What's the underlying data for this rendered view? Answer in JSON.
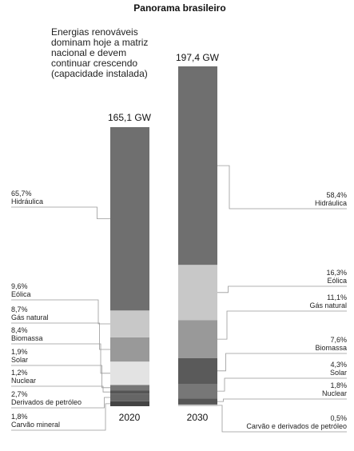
{
  "chart_data": {
    "type": "bar",
    "stacked": true,
    "title": "Panorama brasileiro",
    "subtitle_lines": [
      "Energias renováveis",
      "dominam hoje a matriz",
      "nacional e devem",
      "continuar crescendo",
      "(capacidade instalada)"
    ],
    "categories": [
      "2020",
      "2030"
    ],
    "totals": [
      "165,1 GW",
      "197,4 GW"
    ],
    "total_values": [
      165.1,
      197.4
    ],
    "bars": [
      {
        "year": "2020",
        "segments": [
          {
            "name": "Carvão mineral",
            "pct": "1,8%",
            "value": 1.8,
            "color": "#444444"
          },
          {
            "name": "Derivados de petróleo",
            "pct": "2,7%",
            "value": 2.7,
            "color": "#666666"
          },
          {
            "name": "Nuclear",
            "pct": "1,2%",
            "value": 1.2,
            "color": "#555555"
          },
          {
            "name": "Solar",
            "pct": "1,9%",
            "value": 1.9,
            "color": "#777777"
          },
          {
            "name": "Biomassa",
            "pct": "8,4%",
            "value": 8.4,
            "color": "#e3e3e3"
          },
          {
            "name": "Gás natural",
            "pct": "8,7%",
            "value": 8.7,
            "color": "#999999"
          },
          {
            "name": "Eólica",
            "pct": "9,6%",
            "value": 9.6,
            "color": "#c8c8c8"
          },
          {
            "name": "Hidráulica",
            "pct": "65,7%",
            "value": 65.7,
            "color": "#6f6f6f"
          }
        ]
      },
      {
        "year": "2030",
        "segments": [
          {
            "name": "Carvão e derivados de petróleo",
            "pct": "0,5%",
            "value": 0.5,
            "color": "#c8c8c8"
          },
          {
            "name": "Nuclear",
            "pct": "1,8%",
            "value": 1.8,
            "color": "#555555"
          },
          {
            "name": "Solar",
            "pct": "4,3%",
            "value": 4.3,
            "color": "#777777"
          },
          {
            "name": "Biomassa",
            "pct": "7,6%",
            "value": 7.6,
            "color": "#5a5a5a"
          },
          {
            "name": "Gás natural",
            "pct": "11,1%",
            "value": 11.1,
            "color": "#999999"
          },
          {
            "name": "Eólica",
            "pct": "16,3%",
            "value": 16.3,
            "color": "#c8c8c8"
          },
          {
            "name": "Hidráulica",
            "pct": "58,4%",
            "value": 58.4,
            "color": "#6f6f6f"
          }
        ]
      }
    ]
  }
}
